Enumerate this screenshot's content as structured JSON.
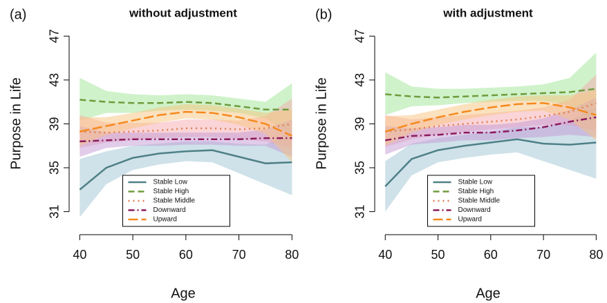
{
  "chart_data": [
    {
      "type": "line",
      "panel_label": "(a)",
      "title": "without adjustment",
      "xlabel": "Age",
      "ylabel": "Purpose in Life",
      "x": [
        40,
        45,
        50,
        55,
        60,
        65,
        70,
        75,
        80
      ],
      "xlim": [
        38,
        81
      ],
      "ylim": [
        28.9,
        47.9
      ],
      "xticks": [
        40,
        50,
        60,
        70,
        80
      ],
      "yticks": [
        31,
        35,
        39,
        43,
        47
      ],
      "legend": "lower center",
      "series": [
        {
          "name": "Stable Low",
          "color": "#4d8086",
          "band_color": "#9fc3d3",
          "linestyle": "solid",
          "values": [
            33.0,
            35.0,
            35.9,
            36.3,
            36.5,
            36.6,
            36.0,
            35.4,
            35.5
          ],
          "lower": [
            30.5,
            33.5,
            34.8,
            35.3,
            35.6,
            35.5,
            34.5,
            33.5,
            32.5
          ],
          "upper": [
            35.8,
            36.5,
            37.0,
            37.2,
            37.4,
            37.4,
            37.2,
            37.1,
            38.3
          ]
        },
        {
          "name": "Stable High",
          "color": "#6f9b3c",
          "band_color": "#9fe696",
          "linestyle": "dashed",
          "values": [
            41.2,
            41.0,
            40.9,
            40.9,
            41.0,
            40.9,
            40.6,
            40.3,
            40.3
          ],
          "lower": [
            39.3,
            40.0,
            40.0,
            40.2,
            40.3,
            40.2,
            40.0,
            39.5,
            38.0
          ],
          "upper": [
            43.2,
            42.0,
            41.7,
            41.6,
            41.7,
            41.6,
            41.3,
            41.0,
            42.7
          ]
        },
        {
          "name": "Stable Middle",
          "color": "#e07d4f",
          "band_color": "#f5a9b0",
          "linestyle": "dotted",
          "values": [
            38.3,
            38.2,
            38.3,
            38.4,
            38.6,
            38.6,
            38.5,
            38.6,
            39.0
          ],
          "lower": [
            36.8,
            37.3,
            37.5,
            37.7,
            37.8,
            37.8,
            37.6,
            37.4,
            36.8
          ],
          "upper": [
            39.8,
            39.1,
            39.1,
            39.1,
            39.4,
            39.4,
            39.3,
            39.7,
            41.3
          ]
        },
        {
          "name": "Downward",
          "color": "#8b1a5c",
          "band_color": "#c39ad6",
          "linestyle": "dashdot",
          "values": [
            37.4,
            37.5,
            37.6,
            37.6,
            37.6,
            37.6,
            37.6,
            37.7,
            37.7
          ],
          "lower": [
            36.0,
            36.8,
            37.0,
            37.0,
            37.1,
            37.1,
            37.0,
            37.0,
            36.0
          ],
          "upper": [
            38.8,
            38.2,
            38.2,
            38.2,
            38.2,
            38.2,
            38.2,
            38.5,
            39.4
          ]
        },
        {
          "name": "Upward",
          "color": "#f5891e",
          "band_color": "#f8c47e",
          "linestyle": "longdash",
          "values": [
            38.3,
            38.8,
            39.3,
            39.8,
            40.1,
            40.0,
            39.6,
            39.0,
            37.9
          ],
          "lower": [
            37.0,
            38.0,
            38.6,
            39.1,
            39.5,
            39.4,
            38.9,
            38.1,
            35.5
          ],
          "upper": [
            39.6,
            39.6,
            40.0,
            40.5,
            40.8,
            40.7,
            40.4,
            40.0,
            40.3
          ]
        }
      ]
    },
    {
      "type": "line",
      "panel_label": "(b)",
      "title": "with adjustment",
      "xlabel": "Age",
      "ylabel": "Purpose in Life",
      "x": [
        40,
        45,
        50,
        55,
        60,
        65,
        70,
        75,
        80
      ],
      "xlim": [
        38,
        81
      ],
      "ylim": [
        28.9,
        47.9
      ],
      "xticks": [
        40,
        50,
        60,
        70,
        80
      ],
      "yticks": [
        31,
        35,
        39,
        43,
        47
      ],
      "legend": "lower center",
      "series": [
        {
          "name": "Stable Low",
          "color": "#4d8086",
          "band_color": "#9fc3d3",
          "linestyle": "solid",
          "values": [
            33.3,
            35.8,
            36.6,
            37.0,
            37.3,
            37.6,
            37.2,
            37.1,
            37.3
          ],
          "lower": [
            31.0,
            34.3,
            35.5,
            35.9,
            36.2,
            36.4,
            35.6,
            34.8,
            34.0
          ],
          "upper": [
            35.6,
            37.2,
            37.7,
            38.0,
            38.3,
            38.7,
            38.7,
            39.3,
            40.5
          ]
        },
        {
          "name": "Stable High",
          "color": "#6f9b3c",
          "band_color": "#9fe696",
          "linestyle": "dashed",
          "values": [
            41.7,
            41.5,
            41.4,
            41.5,
            41.6,
            41.7,
            41.8,
            41.9,
            42.2
          ],
          "lower": [
            39.8,
            40.6,
            40.7,
            40.9,
            41.0,
            41.1,
            41.1,
            40.7,
            39.0
          ],
          "upper": [
            43.7,
            42.4,
            42.2,
            42.2,
            42.3,
            42.4,
            42.6,
            43.2,
            45.5
          ]
        },
        {
          "name": "Stable Middle",
          "color": "#e07d4f",
          "band_color": "#f5a9b0",
          "linestyle": "dotted",
          "values": [
            38.3,
            38.5,
            38.8,
            39.0,
            39.2,
            39.4,
            39.7,
            40.1,
            40.9
          ],
          "lower": [
            36.9,
            37.6,
            38.0,
            38.3,
            38.5,
            38.7,
            38.9,
            38.9,
            38.3
          ],
          "upper": [
            39.8,
            39.4,
            39.6,
            39.8,
            40.0,
            40.2,
            40.5,
            41.2,
            43.5
          ]
        },
        {
          "name": "Downward",
          "color": "#8b1a5c",
          "band_color": "#c39ad6",
          "linestyle": "dashdot",
          "values": [
            37.5,
            37.9,
            38.0,
            38.2,
            38.2,
            38.4,
            38.7,
            39.2,
            39.6
          ],
          "lower": [
            36.2,
            37.1,
            37.3,
            37.5,
            37.5,
            37.7,
            37.8,
            38.0,
            37.8
          ],
          "upper": [
            38.8,
            38.6,
            38.7,
            38.9,
            38.9,
            39.1,
            39.5,
            40.3,
            41.4
          ]
        },
        {
          "name": "Upward",
          "color": "#f5891e",
          "band_color": "#f8c47e",
          "linestyle": "longdash",
          "values": [
            38.3,
            39.0,
            39.6,
            40.1,
            40.5,
            40.8,
            40.9,
            40.5,
            39.8
          ],
          "lower": [
            37.0,
            38.2,
            38.9,
            39.4,
            39.8,
            40.1,
            40.2,
            39.4,
            37.5
          ],
          "upper": [
            39.7,
            39.8,
            40.3,
            40.8,
            41.2,
            41.5,
            41.6,
            41.6,
            42.1
          ]
        }
      ]
    }
  ]
}
